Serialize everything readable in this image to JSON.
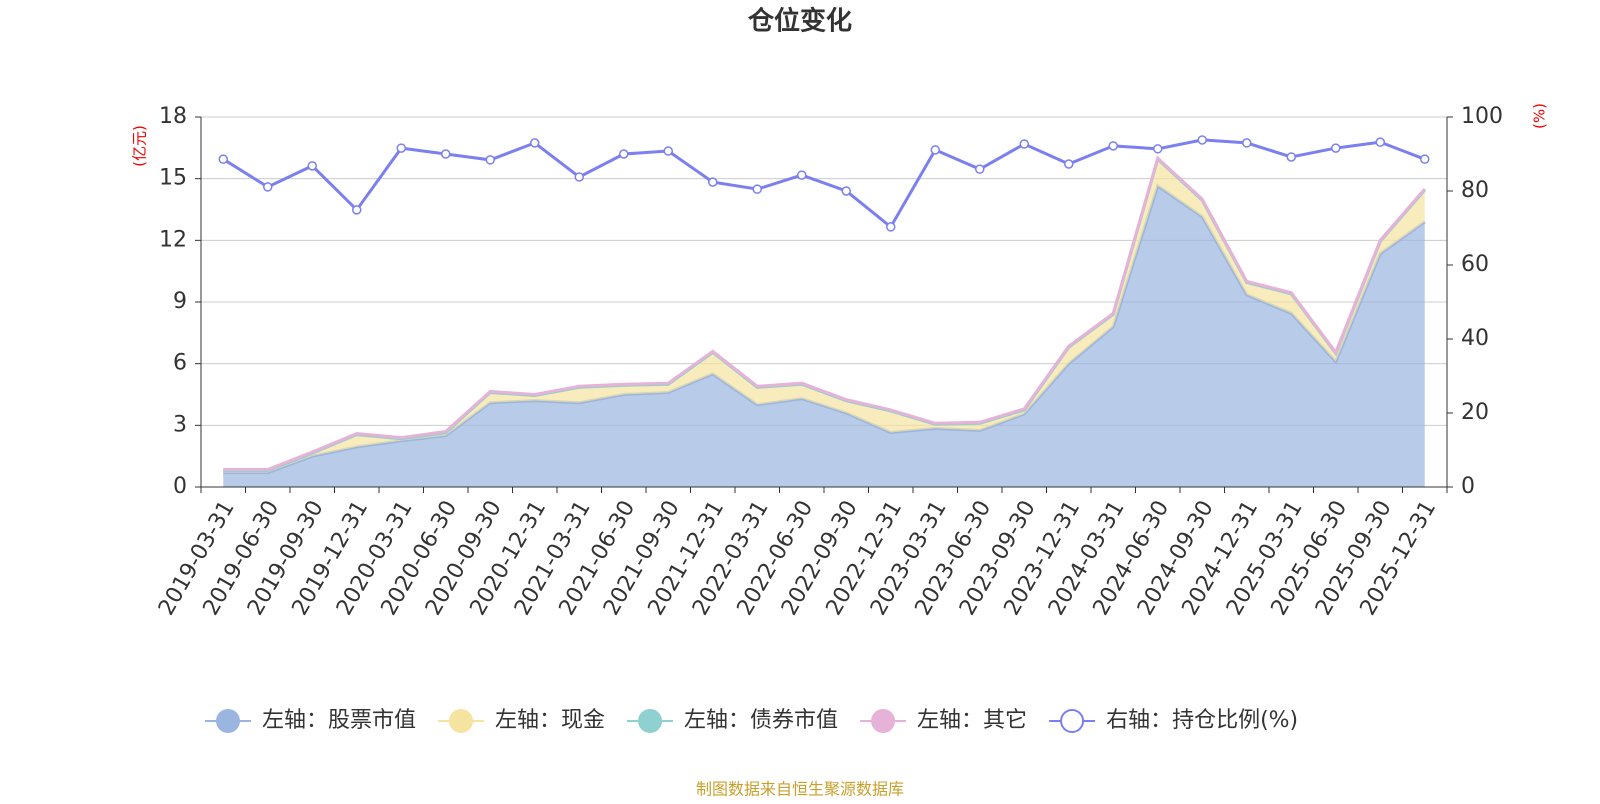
{
  "chart_data": {
    "type": "stacked-area-line",
    "title": "仓位变化",
    "y_label": "(亿元)",
    "y2_label": "(%)",
    "source": "制图数据来自恒生聚源数据库",
    "categories": [
      "2019-03-31",
      "2019-06-30",
      "2019-09-30",
      "2019-12-31",
      "2020-03-31",
      "2020-06-30",
      "2020-09-30",
      "2020-12-31",
      "2021-03-31",
      "2021-06-30",
      "2021-09-30",
      "2021-12-31",
      "2022-03-31",
      "2022-06-30",
      "2022-09-30",
      "2022-12-31",
      "2023-03-31",
      "2023-06-30",
      "2023-09-30",
      "2023-12-31",
      "2024-03-31",
      "2024-06-30",
      "2024-09-30",
      "2024-12-31",
      "2025-03-31",
      "2025-06-30",
      "2025-09-30",
      "2025-12-31"
    ],
    "series": [
      {
        "name": "左轴：股票市值",
        "color": "#9ab5e0",
        "axis": "y",
        "values": [
          0.7,
          0.7,
          1.5,
          1.95,
          2.25,
          2.5,
          4.1,
          4.2,
          4.1,
          4.5,
          4.6,
          5.5,
          4.0,
          4.3,
          3.6,
          2.65,
          2.85,
          2.75,
          3.55,
          6.0,
          7.8,
          14.65,
          13.15,
          9.35,
          8.45,
          6.1,
          11.35,
          12.9
        ]
      },
      {
        "name": "左轴：现金",
        "color": "#f5e3a0",
        "axis": "y",
        "values": [
          0.1,
          0.1,
          0.15,
          0.6,
          0.1,
          0.15,
          0.5,
          0.25,
          0.75,
          0.45,
          0.4,
          1.05,
          0.85,
          0.7,
          0.6,
          1.05,
          0.2,
          0.35,
          0.2,
          0.8,
          0.6,
          1.3,
          0.8,
          0.6,
          0.95,
          0.4,
          0.6,
          1.55
        ]
      },
      {
        "name": "左轴：债券市值",
        "color": "#8fd0d0",
        "axis": "y",
        "values": [
          0,
          0,
          0,
          0,
          0,
          0,
          0,
          0,
          0,
          0,
          0,
          0,
          0,
          0,
          0,
          0,
          0,
          0,
          0,
          0,
          0,
          0,
          0,
          0,
          0,
          0,
          0,
          0
        ]
      },
      {
        "name": "左轴：其它",
        "color": "#e6b2d8",
        "axis": "y",
        "values": [
          0.05,
          0.05,
          0.05,
          0.05,
          0.05,
          0.05,
          0.05,
          0.05,
          0.05,
          0.05,
          0.05,
          0.05,
          0.05,
          0.05,
          0.05,
          0.05,
          0.05,
          0.05,
          0.05,
          0.05,
          0.05,
          0.05,
          0.05,
          0.05,
          0.05,
          0.05,
          0.05,
          0.05
        ]
      },
      {
        "name": "右轴：持仓比例(%)",
        "color": "#7b7ff0",
        "axis": "y2",
        "values": [
          88.6,
          81.1,
          86.8,
          74.9,
          91.6,
          90,
          88.4,
          93,
          83.8,
          90,
          90.8,
          82.4,
          80.5,
          84.3,
          80,
          70.3,
          91.1,
          85.9,
          92.7,
          87.3,
          92.2,
          91.4,
          93.8,
          93,
          89.2,
          91.6,
          93.2,
          88.6
        ]
      }
    ],
    "ylim": [
      0,
      18
    ],
    "yticks": [
      0,
      3,
      6,
      9,
      12,
      15,
      18
    ],
    "y2lim": [
      0,
      100
    ],
    "y2ticks": [
      0,
      20,
      40,
      60,
      80,
      100
    ],
    "grid": true
  }
}
